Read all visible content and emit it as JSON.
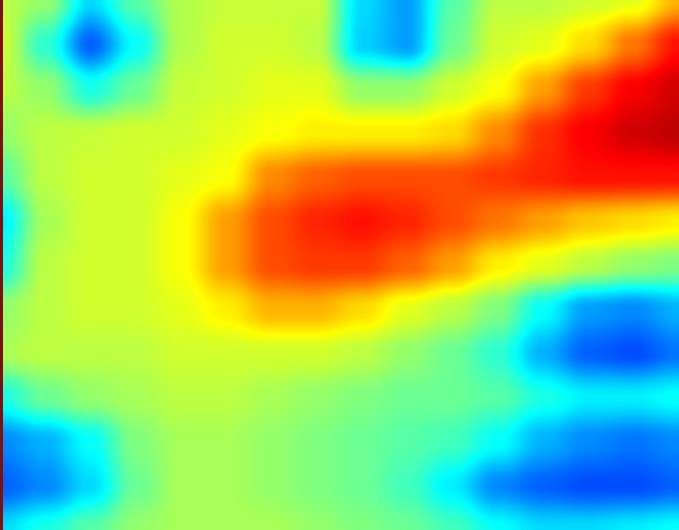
{
  "chart_data": {
    "type": "heatmap",
    "title": "",
    "xlabel": "",
    "ylabel": "",
    "colormap": "jet",
    "value_range": [
      0,
      1
    ],
    "axes_visible": false,
    "colorbar": false,
    "grid": false,
    "grid_cols": 16,
    "grid_rows": 13,
    "values": [
      [
        0.56,
        0.52,
        0.34,
        0.46,
        0.55,
        0.57,
        0.57,
        0.57,
        0.34,
        0.28,
        0.46,
        0.56,
        0.56,
        0.58,
        0.6,
        0.7
      ],
      [
        0.58,
        0.42,
        0.22,
        0.38,
        0.55,
        0.58,
        0.58,
        0.56,
        0.33,
        0.28,
        0.48,
        0.58,
        0.6,
        0.66,
        0.76,
        0.86
      ],
      [
        0.56,
        0.52,
        0.4,
        0.48,
        0.57,
        0.58,
        0.6,
        0.6,
        0.52,
        0.52,
        0.58,
        0.62,
        0.72,
        0.82,
        0.88,
        0.92
      ],
      [
        0.52,
        0.56,
        0.57,
        0.58,
        0.58,
        0.6,
        0.62,
        0.64,
        0.64,
        0.64,
        0.66,
        0.74,
        0.83,
        0.88,
        0.92,
        0.94
      ],
      [
        0.46,
        0.56,
        0.58,
        0.58,
        0.6,
        0.62,
        0.74,
        0.78,
        0.8,
        0.8,
        0.8,
        0.82,
        0.84,
        0.86,
        0.86,
        0.86
      ],
      [
        0.36,
        0.54,
        0.58,
        0.58,
        0.62,
        0.72,
        0.8,
        0.84,
        0.86,
        0.84,
        0.8,
        0.76,
        0.72,
        0.68,
        0.66,
        0.64
      ],
      [
        0.4,
        0.56,
        0.58,
        0.58,
        0.62,
        0.72,
        0.8,
        0.82,
        0.82,
        0.78,
        0.72,
        0.64,
        0.6,
        0.56,
        0.52,
        0.5
      ],
      [
        0.52,
        0.56,
        0.58,
        0.58,
        0.6,
        0.64,
        0.7,
        0.7,
        0.66,
        0.6,
        0.56,
        0.5,
        0.38,
        0.28,
        0.26,
        0.3
      ],
      [
        0.54,
        0.56,
        0.56,
        0.56,
        0.58,
        0.58,
        0.58,
        0.58,
        0.56,
        0.52,
        0.48,
        0.42,
        0.3,
        0.22,
        0.2,
        0.24
      ],
      [
        0.4,
        0.48,
        0.52,
        0.54,
        0.56,
        0.56,
        0.54,
        0.52,
        0.5,
        0.48,
        0.48,
        0.46,
        0.4,
        0.36,
        0.36,
        0.38
      ],
      [
        0.26,
        0.3,
        0.38,
        0.5,
        0.54,
        0.54,
        0.52,
        0.5,
        0.48,
        0.46,
        0.44,
        0.38,
        0.3,
        0.26,
        0.24,
        0.26
      ],
      [
        0.22,
        0.26,
        0.34,
        0.48,
        0.54,
        0.54,
        0.52,
        0.5,
        0.48,
        0.44,
        0.36,
        0.26,
        0.22,
        0.2,
        0.2,
        0.22
      ],
      [
        0.34,
        0.4,
        0.46,
        0.52,
        0.54,
        0.54,
        0.54,
        0.52,
        0.5,
        0.48,
        0.44,
        0.38,
        0.34,
        0.34,
        0.36,
        0.38
      ]
    ]
  }
}
